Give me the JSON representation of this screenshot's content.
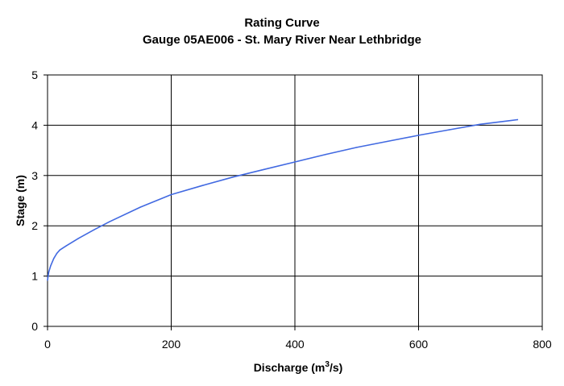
{
  "chart_data": {
    "type": "line",
    "title": "Rating Curve",
    "subtitle": "Gauge 05AE006 - St. Mary River Near Lethbridge",
    "xlabel": "Discharge (m",
    "xlabel_sup": "3",
    "xlabel_tail": "/s)",
    "ylabel": "Stage (m)",
    "xlim": [
      0,
      800
    ],
    "ylim": [
      0,
      5
    ],
    "x_ticks": [
      "0",
      "200",
      "400",
      "600",
      "800"
    ],
    "y_ticks": [
      "0",
      "1",
      "2",
      "3",
      "4",
      "5"
    ],
    "grid": true,
    "legend": "none",
    "line_color": "#4169e1",
    "series": [
      {
        "x": [
          0,
          2,
          5,
          10,
          15,
          20,
          30,
          50,
          75,
          100,
          150,
          200,
          250,
          300,
          350,
          400,
          450,
          500,
          550,
          600,
          650,
          700,
          760
        ],
        "y": [
          0.92,
          1.08,
          1.2,
          1.35,
          1.45,
          1.52,
          1.6,
          1.75,
          1.92,
          2.08,
          2.37,
          2.62,
          2.8,
          2.97,
          3.12,
          3.27,
          3.42,
          3.56,
          3.68,
          3.8,
          3.91,
          4.02,
          4.11
        ]
      }
    ]
  }
}
